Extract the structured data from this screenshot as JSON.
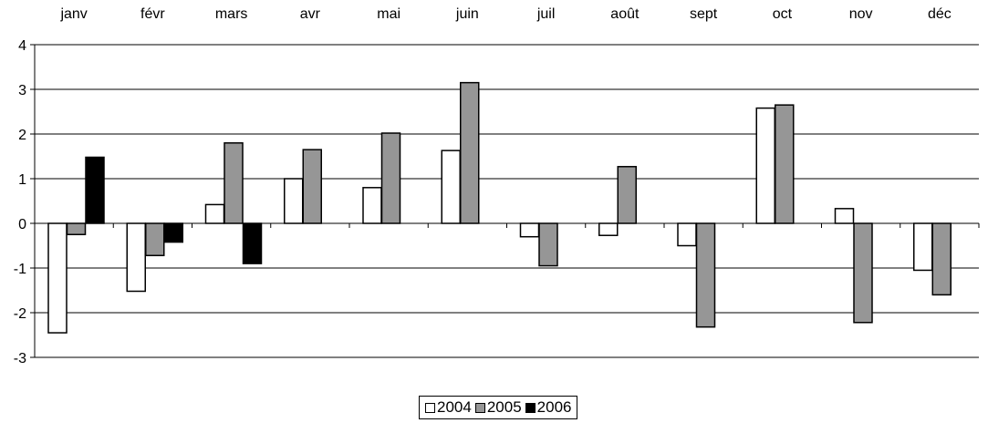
{
  "chart_data": {
    "type": "bar",
    "categories": [
      "janv",
      "févr",
      "mars",
      "avr",
      "mai",
      "juin",
      "juil",
      "août",
      "sept",
      "oct",
      "nov",
      "déc"
    ],
    "series": [
      {
        "name": "2004",
        "color": "#ffffff",
        "values": [
          -2.45,
          -1.52,
          0.42,
          1.0,
          0.8,
          1.63,
          -0.3,
          -0.27,
          -0.5,
          2.58,
          0.33,
          -1.05
        ]
      },
      {
        "name": "2005",
        "color": "#969696",
        "values": [
          -0.25,
          -0.72,
          1.8,
          1.65,
          2.02,
          3.15,
          -0.95,
          1.27,
          -2.32,
          2.65,
          -2.22,
          -1.6
        ]
      },
      {
        "name": "2006",
        "color": "#000000",
        "values": [
          1.48,
          -0.42,
          -0.9,
          null,
          null,
          null,
          null,
          null,
          null,
          null,
          null,
          null
        ]
      }
    ],
    "ylim": [
      -3,
      4
    ],
    "yticks": [
      -3,
      -2,
      -1,
      0,
      1,
      2,
      3,
      4
    ],
    "xaxis_position": "top",
    "grid": "horizontal",
    "legend_position": "bottom-center",
    "title": "",
    "xlabel": "",
    "ylabel": ""
  }
}
